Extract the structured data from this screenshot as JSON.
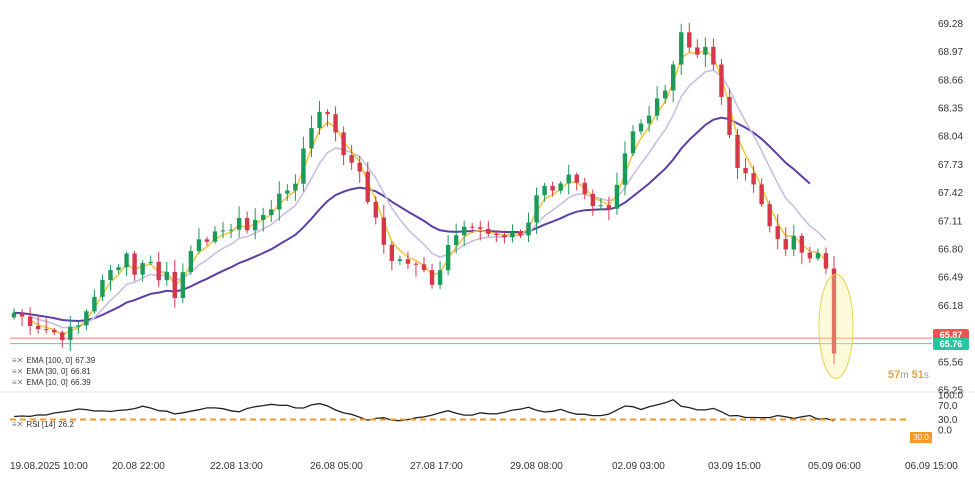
{
  "chart_data": {
    "type": "candlestick",
    "title": "",
    "ylim": [
      65.25,
      69.45
    ],
    "y_ticks": [
      "69.28",
      "68.97",
      "68.66",
      "68.35",
      "68.04",
      "67.73",
      "67.42",
      "67.11",
      "66.80",
      "66.49",
      "66.18",
      "65.87",
      "65.56",
      "65.25"
    ],
    "x_ticks": [
      "19.08.2025   10:00",
      "20.08 22:00",
      "22.08 13:00",
      "26.08 05:00",
      "27.08 17:00",
      "29.08 08:00",
      "02.09 03:00",
      "03.09 15:00",
      "05.09 06:00",
      "06.09 15:00"
    ],
    "price_path": [
      [
        0,
        66.1
      ],
      [
        3,
        65.95
      ],
      [
        6,
        65.85
      ],
      [
        8,
        65.95
      ],
      [
        10,
        66.3
      ],
      [
        12,
        66.55
      ],
      [
        14,
        66.75
      ],
      [
        15,
        66.55
      ],
      [
        17,
        66.7
      ],
      [
        18,
        66.45
      ],
      [
        19,
        66.55
      ],
      [
        20,
        66.3
      ],
      [
        21,
        66.6
      ],
      [
        23,
        66.85
      ],
      [
        25,
        67.0
      ],
      [
        26,
        66.95
      ],
      [
        28,
        67.15
      ],
      [
        29,
        67.0
      ],
      [
        31,
        67.2
      ],
      [
        33,
        67.35
      ],
      [
        35,
        67.55
      ],
      [
        36,
        67.9
      ],
      [
        37,
        68.15
      ],
      [
        38,
        68.35
      ],
      [
        39,
        68.25
      ],
      [
        40,
        68.1
      ],
      [
        41,
        67.85
      ],
      [
        42,
        67.8
      ],
      [
        43,
        67.6
      ],
      [
        44,
        67.35
      ],
      [
        45,
        67.1
      ],
      [
        46,
        66.85
      ],
      [
        47,
        66.7
      ],
      [
        49,
        66.65
      ],
      [
        51,
        66.55
      ],
      [
        52,
        66.45
      ],
      [
        53,
        66.6
      ],
      [
        54,
        66.85
      ],
      [
        55,
        67.0
      ],
      [
        56,
        67.1
      ],
      [
        57,
        67.05
      ],
      [
        58,
        67.0
      ],
      [
        59,
        66.95
      ],
      [
        60,
        66.9
      ],
      [
        61,
        66.95
      ],
      [
        62,
        67.0
      ],
      [
        63,
        66.95
      ],
      [
        64,
        67.1
      ],
      [
        65,
        67.35
      ],
      [
        66,
        67.5
      ],
      [
        67,
        67.45
      ],
      [
        68,
        67.55
      ],
      [
        69,
        67.65
      ],
      [
        70,
        67.5
      ],
      [
        71,
        67.45
      ],
      [
        72,
        67.3
      ],
      [
        73,
        67.25
      ],
      [
        74,
        67.2
      ],
      [
        75,
        67.45
      ],
      [
        76,
        67.8
      ],
      [
        77,
        68.05
      ],
      [
        78,
        68.15
      ],
      [
        79,
        68.25
      ],
      [
        80,
        68.45
      ],
      [
        81,
        68.6
      ],
      [
        81.5,
        68.05
      ],
      [
        82,
        68.85
      ],
      [
        83,
        69.2
      ],
      [
        84,
        69.05
      ],
      [
        85,
        68.95
      ],
      [
        86,
        69.0
      ],
      [
        87,
        68.8
      ],
      [
        88,
        68.5
      ],
      [
        89,
        68.0
      ],
      [
        90,
        67.75
      ],
      [
        91,
        67.65
      ],
      [
        92,
        67.5
      ],
      [
        93,
        67.3
      ],
      [
        94,
        67.1
      ],
      [
        95,
        66.85
      ],
      [
        96,
        66.8
      ],
      [
        97,
        66.9
      ],
      [
        98,
        66.75
      ],
      [
        99,
        66.7
      ],
      [
        100,
        66.8
      ],
      [
        101,
        66.55
      ],
      [
        101.5,
        66.1
      ],
      [
        102,
        65.65
      ]
    ],
    "series": [
      {
        "name": "EMA [100, 0]",
        "value_label": "67.39",
        "color": "#5b3fa6"
      },
      {
        "name": "EMA [30, 0]",
        "value_label": "66.81",
        "color": "#c9bfe0"
      },
      {
        "name": "EMA [10, 0]",
        "value_label": "66.39",
        "color": "#f2c744"
      }
    ],
    "horizontal_lines": [
      {
        "value": 65.82,
        "color": "#ef5350"
      },
      {
        "value": 65.76,
        "color": "#26c6a0"
      }
    ],
    "current_price_labels": [
      "65.87",
      "65.76"
    ],
    "rsi": {
      "name": "RSI [14]",
      "value_label": "26.2",
      "ylim": [
        0,
        100
      ],
      "y_ticks": [
        "100.0",
        "70.0",
        "30.0",
        "0.0"
      ],
      "level": 30,
      "level_label": "30.0",
      "path": [
        [
          0,
          38
        ],
        [
          4,
          45
        ],
        [
          8,
          60
        ],
        [
          12,
          52
        ],
        [
          16,
          68
        ],
        [
          20,
          48
        ],
        [
          24,
          62
        ],
        [
          28,
          55
        ],
        [
          32,
          72
        ],
        [
          36,
          64
        ],
        [
          38,
          78
        ],
        [
          40,
          58
        ],
        [
          42,
          42
        ],
        [
          44,
          30
        ],
        [
          46,
          34
        ],
        [
          48,
          28
        ],
        [
          50,
          36
        ],
        [
          52,
          44
        ],
        [
          54,
          55
        ],
        [
          56,
          40
        ],
        [
          58,
          50
        ],
        [
          60,
          48
        ],
        [
          62,
          58
        ],
        [
          64,
          66
        ],
        [
          66,
          52
        ],
        [
          68,
          57
        ],
        [
          70,
          45
        ],
        [
          72,
          40
        ],
        [
          74,
          44
        ],
        [
          76,
          70
        ],
        [
          78,
          60
        ],
        [
          80,
          72
        ],
        [
          82,
          84
        ],
        [
          83,
          70
        ],
        [
          85,
          58
        ],
        [
          87,
          60
        ],
        [
          89,
          42
        ],
        [
          91,
          38
        ],
        [
          93,
          34
        ],
        [
          95,
          42
        ],
        [
          97,
          36
        ],
        [
          99,
          40
        ],
        [
          100,
          32
        ],
        [
          101,
          36
        ],
        [
          102,
          26
        ]
      ]
    },
    "countdown": {
      "minutes": "57",
      "min_unit": "m",
      "seconds": "51",
      "sec_unit": "s"
    },
    "highlight": "ellipse around last candle"
  }
}
